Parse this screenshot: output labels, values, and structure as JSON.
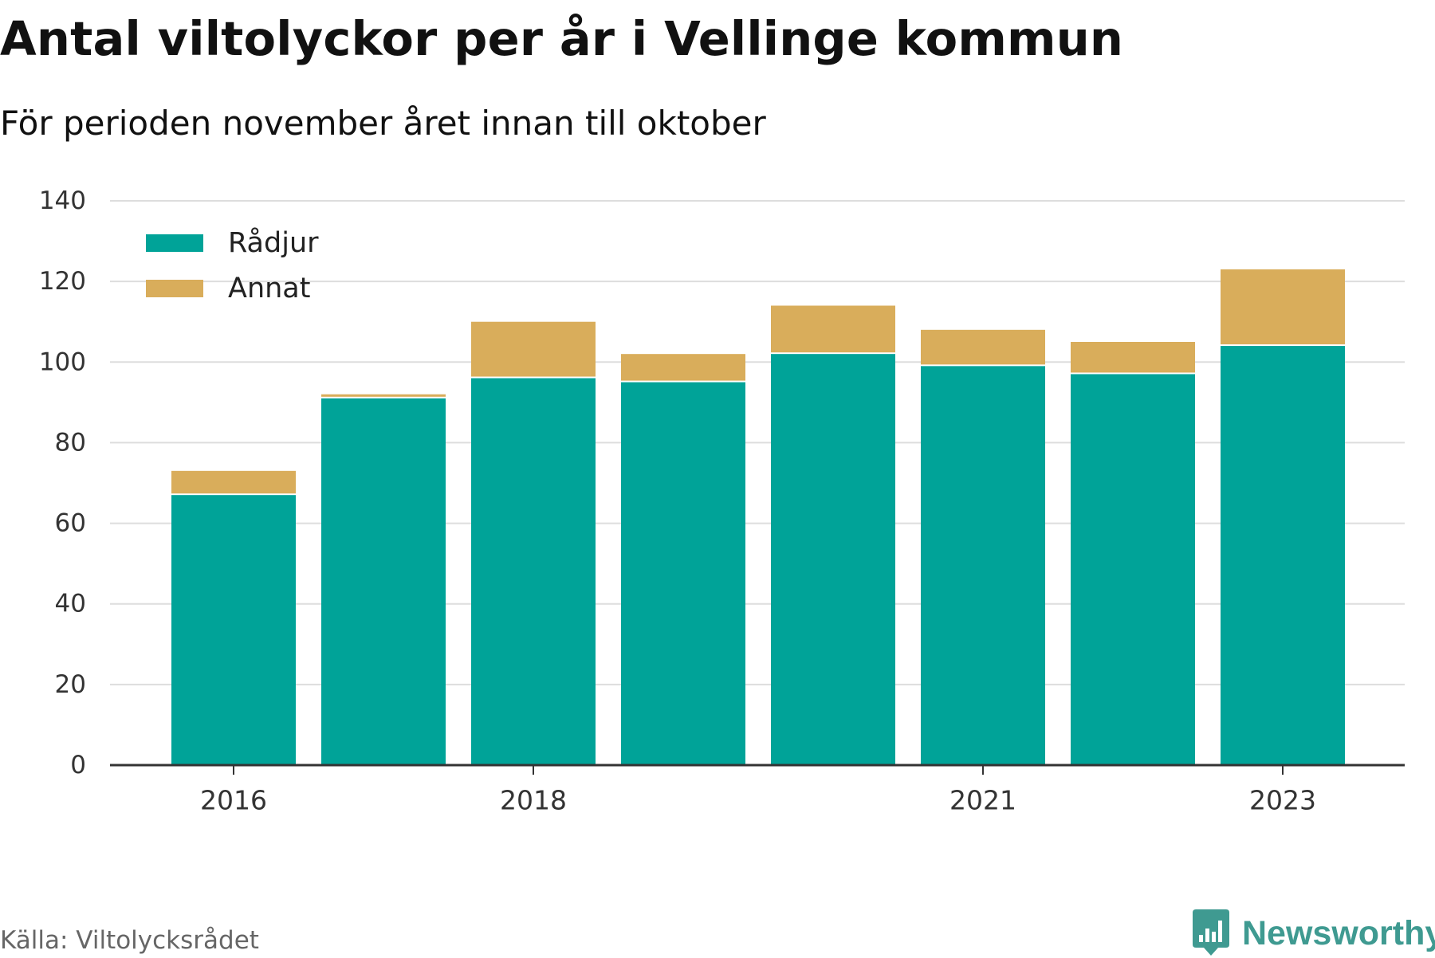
{
  "title": "Antal viltolyckor per år i Vellinge kommun",
  "subtitle": "För perioden november året innan till oktober",
  "source": "Källa: Viltolycksrådet",
  "brand": {
    "name": "Newsworthy",
    "icon": "newsworthy-logo-icon",
    "color": "#3f9a91"
  },
  "chart_data": {
    "type": "bar",
    "stacked": true,
    "categories": [
      "2016",
      "2017",
      "2018",
      "2019",
      "2020",
      "2021",
      "2022",
      "2023"
    ],
    "x_tick_labels": [
      "2016",
      "2018",
      "2021",
      "2023"
    ],
    "series": [
      {
        "name": "Rådjur",
        "color": "#00a398",
        "values": [
          67,
          91,
          96,
          95,
          102,
          99,
          97,
          104
        ]
      },
      {
        "name": "Annat",
        "color": "#d9ad5b",
        "values": [
          6,
          1,
          14,
          7,
          12,
          9,
          8,
          19
        ]
      }
    ],
    "xlabel": "",
    "ylabel": "",
    "ylim": [
      0,
      140
    ],
    "yticks": [
      0,
      20,
      40,
      60,
      80,
      100,
      120,
      140
    ],
    "grid": true,
    "legend": "top-left"
  }
}
